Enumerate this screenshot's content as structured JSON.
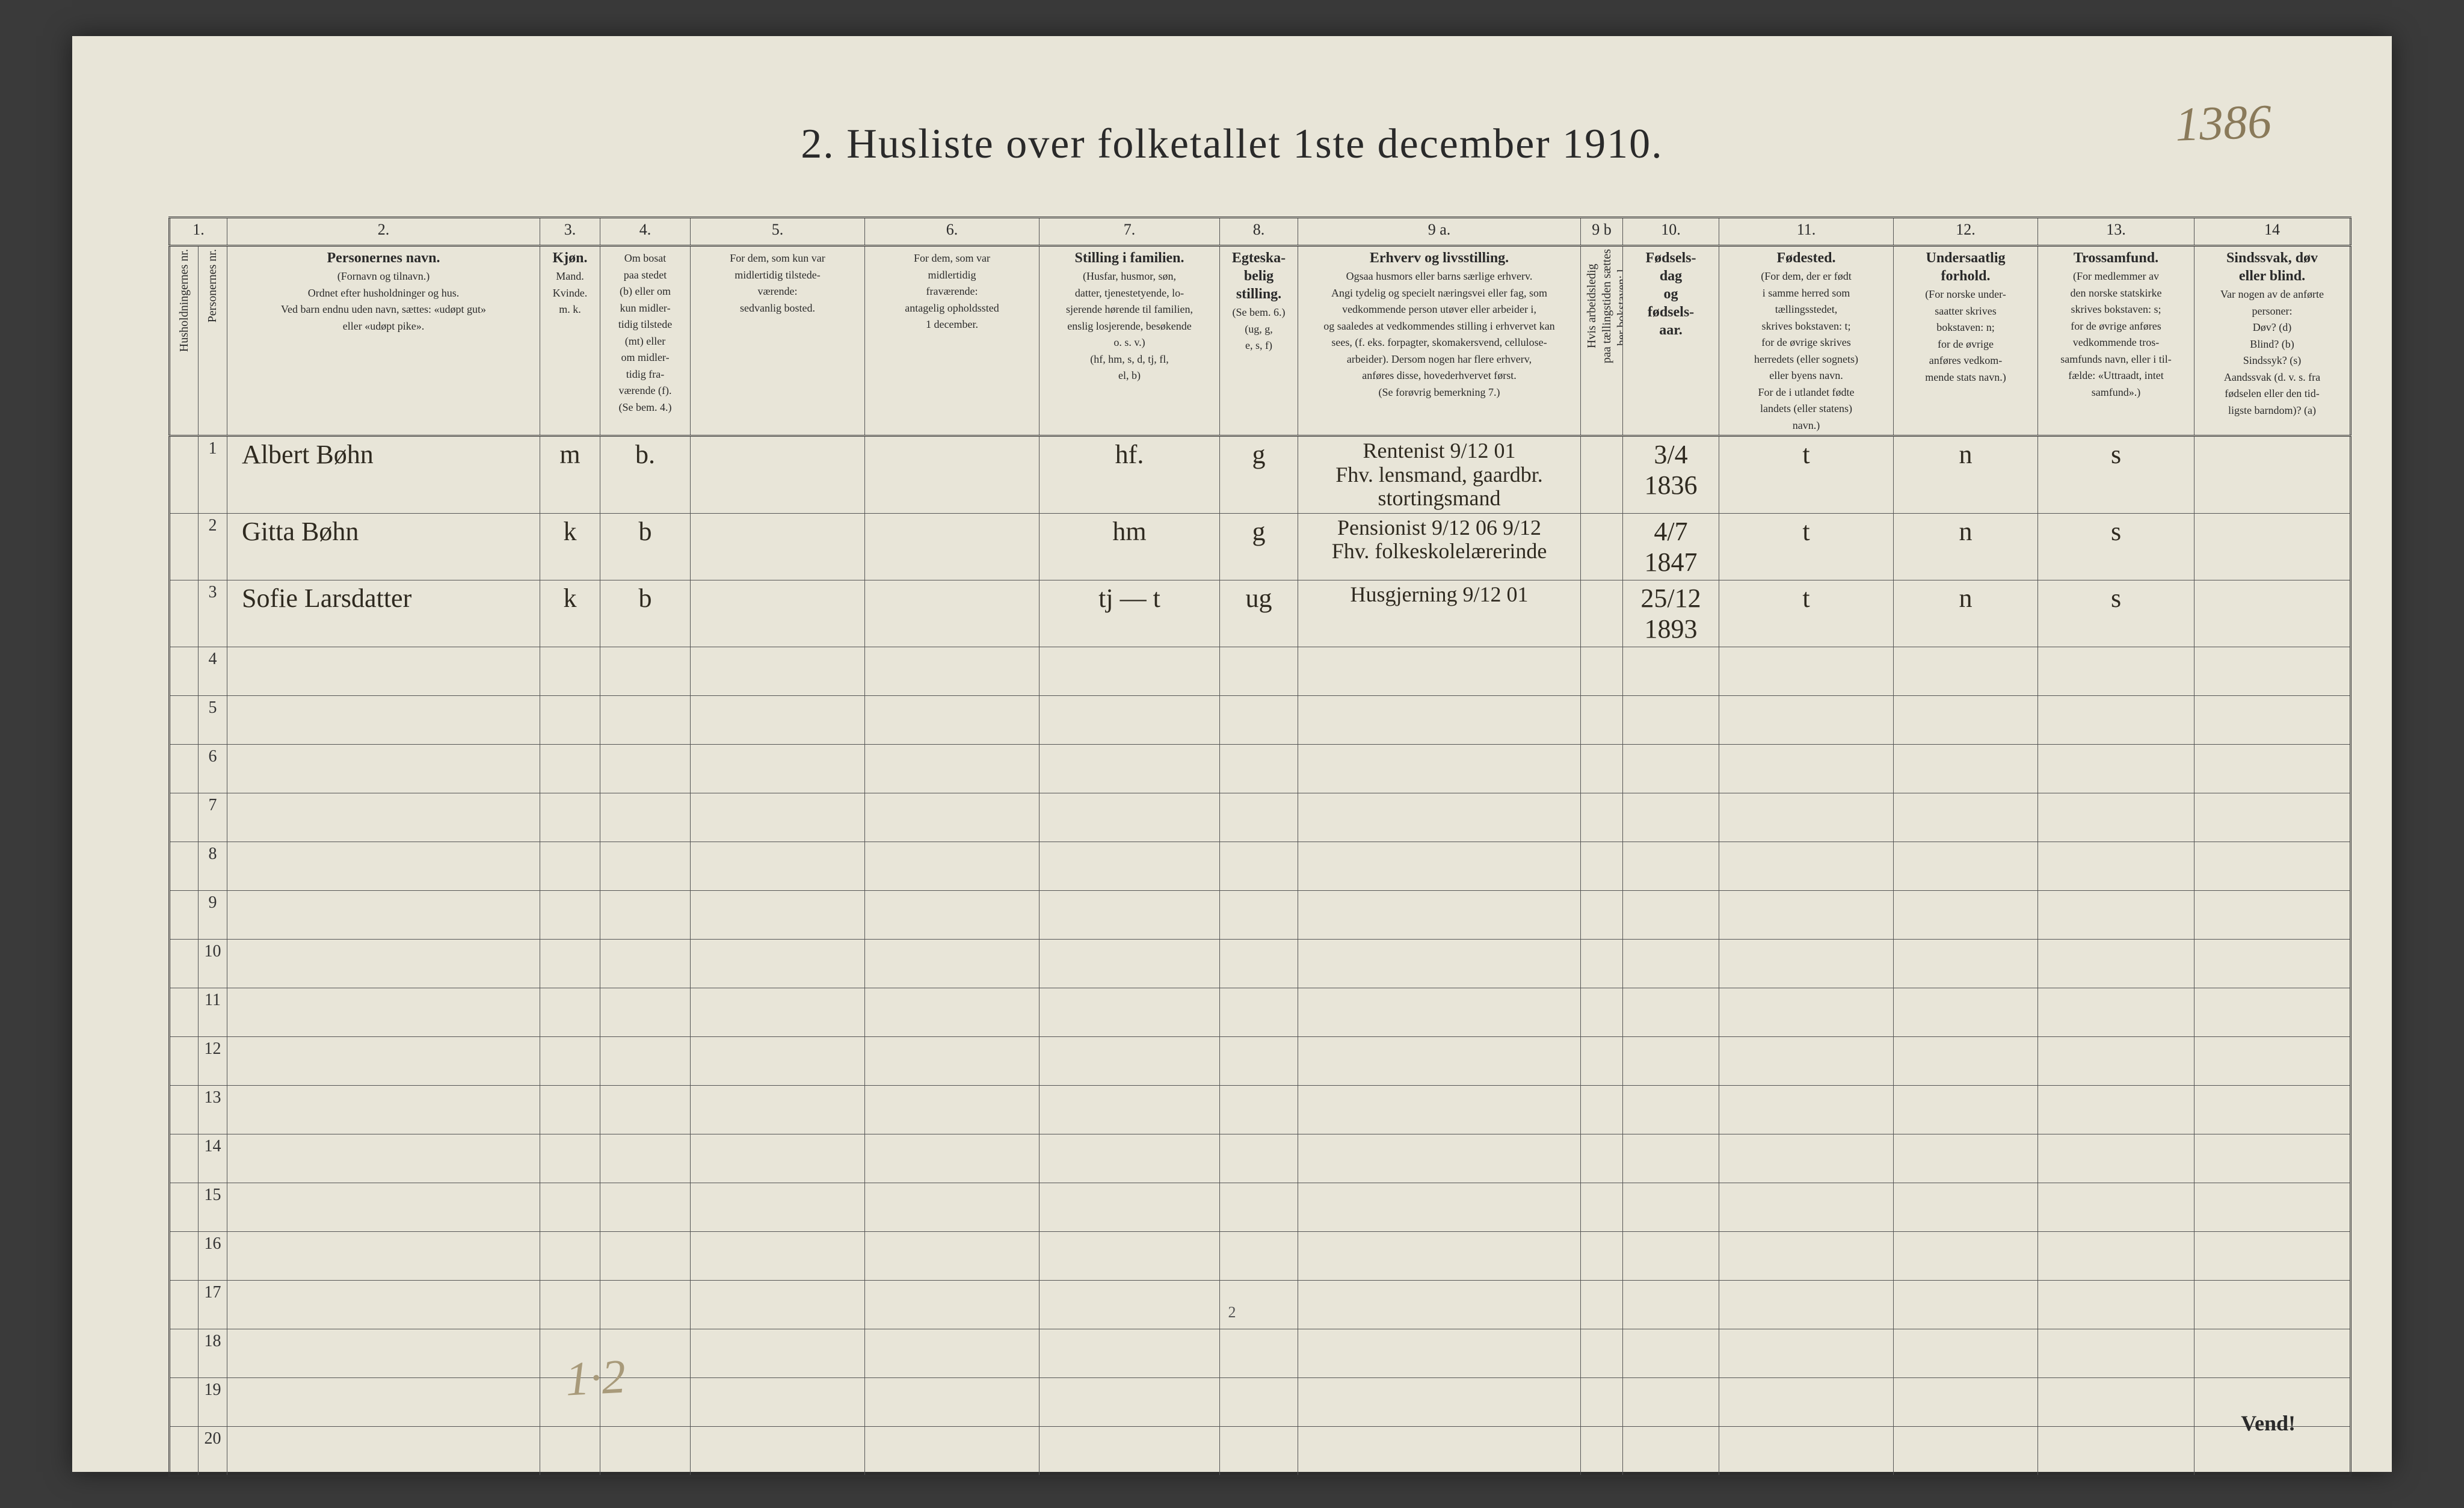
{
  "title": "2.  Husliste over folketallet 1ste december 1910.",
  "page_annotation_topright": "1386",
  "bottom_annotation": "1·2",
  "page_number_bottom": "2",
  "vend": "Vend!",
  "columns": {
    "c1": {
      "num": "1.",
      "header": "Husholdningernes nr."
    },
    "c1b": {
      "header": "Personernes nr."
    },
    "c2": {
      "num": "2.",
      "header_strong": "Personernes navn.",
      "header_sub": "(Fornavn og tilnavn.)\nOrdnet efter husholdninger og hus.\nVed barn endnu uden navn, sættes: «udøpt gut»\neller «udøpt pike»."
    },
    "c3": {
      "num": "3.",
      "header_strong": "Kjøn.",
      "header_sub": "Mand.  Kvinde.\nm.   k."
    },
    "c4": {
      "num": "4.",
      "header": "Om bosat\npaa stedet\n(b) eller om\nkun midler-\ntidig tilstede\n(mt) eller\nom midler-\ntidig fra-\nværende (f).\n(Se bem. 4.)"
    },
    "c5": {
      "num": "5.",
      "header": "For dem, som kun var\nmidlertidig tilstede-\nværende:\nsedvanlig bosted."
    },
    "c6": {
      "num": "6.",
      "header": "For dem, som var\nmidlertidig\nfraværende:\nantagelig opholdssted\n1 december."
    },
    "c7": {
      "num": "7.",
      "header_strong": "Stilling i familien.",
      "header_sub": "(Husfar, husmor, søn,\ndatter, tjenestetyende, lo-\nsjerende hørende til familien,\nenslig losjerende, besøkende\no. s. v.)\n(hf, hm, s, d, tj, fl,\nel, b)"
    },
    "c8": {
      "num": "8.",
      "header_strong": "Egteska-\nbelig\nstilling.",
      "header_sub": "(Se bem. 6.)\n(ug, g,\ne, s, f)"
    },
    "c9a": {
      "num": "9 a.",
      "header_strong": "Erhverv og livsstilling.",
      "header_sub": "Ogsaa husmors eller barns særlige erhverv.\nAngi tydelig og specielt næringsvei eller fag, som\nvedkommende person utøver eller arbeider i,\nog saaledes at vedkommendes stilling i erhvervet kan\nsees, (f. eks. forpagter, skomakersvend, cellulose-\narbeider). Dersom nogen har flere erhverv,\nanføres disse, hovederhvervet først.\n(Se forøvrig bemerkning 7.)"
    },
    "c9b": {
      "num": "9 b",
      "header": "Hvis arbeidsledig\npaa tællingstiden sættes\nher bokstaven: l."
    },
    "c10": {
      "num": "10.",
      "header_strong": "Fødsels-\ndag\nog\nfødsels-\naar."
    },
    "c11": {
      "num": "11.",
      "header_strong": "Fødested.",
      "header_sub": "(For dem, der er født\ni samme herred som\ntællingsstedet,\nskrives bokstaven: t;\nfor de øvrige skrives\nherredets (eller sognets)\neller byens navn.\nFor de i utlandet fødte\nlandets (eller statens)\nnavn.)"
    },
    "c12": {
      "num": "12.",
      "header_strong": "Undersaatlig\nforhold.",
      "header_sub": "(For norske under-\nsaatter skrives\nbokstaven: n;\nfor de øvrige\nanføres vedkom-\nmende stats navn.)"
    },
    "c13": {
      "num": "13.",
      "header_strong": "Trossamfund.",
      "header_sub": "(For medlemmer av\nden norske statskirke\nskrives bokstaven: s;\nfor de øvrige anføres\nvedkommende tros-\nsamfunds navn, eller i til-\nfælde: «Uttraadt, intet\nsamfund».)"
    },
    "c14": {
      "num": "14",
      "header_strong": "Sindssvak, døv\neller blind.",
      "header_sub": "Var nogen av de anførte\npersoner:\nDøv?        (d)\nBlind?      (b)\nSindssyk?  (s)\nAandssvak (d. v. s. fra\nfødselen eller den tid-\nligste barndom)? (a)"
    }
  },
  "col_widths": {
    "c1": 48,
    "c1b": 48,
    "c2": 520,
    "c3": 100,
    "c4": 150,
    "c5": 290,
    "c6": 290,
    "c7": 300,
    "c8": 130,
    "c9a": 470,
    "c9b": 70,
    "c10": 160,
    "c11": 290,
    "c12": 240,
    "c13": 260,
    "c14": 260
  },
  "rows": [
    {
      "idx": "1",
      "name": "Albert Bøhn",
      "sex": "m",
      "resident": "b.",
      "col5": "",
      "col6": "",
      "family": "hf.",
      "marital": "g",
      "occupation": "Rentenist 9/12 01\nFhv. lensmand, gaardbr. stortingsmand",
      "c9b": "",
      "birth": "3/4 1836",
      "birthplace": "t",
      "nationality": "n",
      "faith": "s",
      "c14": ""
    },
    {
      "idx": "2",
      "name": "Gitta Bøhn",
      "sex": "k",
      "resident": "b",
      "col5": "",
      "col6": "",
      "family": "hm",
      "marital": "g",
      "occupation": "Pensionist 9/12 06  9/12\nFhv. folkeskolelærerinde",
      "c9b": "",
      "birth": "4/7 1847",
      "birthplace": "t",
      "nationality": "n",
      "faith": "s",
      "c14": ""
    },
    {
      "idx": "3",
      "name": "Sofie Larsdatter",
      "sex": "k",
      "resident": "b",
      "col5": "",
      "col6": "",
      "family": "tj — t",
      "marital": "ug",
      "occupation": "Husgjerning 9/12 01",
      "c9b": "",
      "birth": "25/12 1893",
      "birthplace": "t",
      "nationality": "n",
      "faith": "s",
      "c14": ""
    }
  ],
  "empty_rows": [
    "4",
    "5",
    "6",
    "7",
    "8",
    "9",
    "10",
    "11",
    "12",
    "13",
    "14",
    "15",
    "16",
    "17",
    "18",
    "19",
    "20"
  ],
  "colors": {
    "paper": "#e8e5d8",
    "ink": "#2a2a2a",
    "pencil": "#8a7a5a",
    "border": "#555"
  }
}
